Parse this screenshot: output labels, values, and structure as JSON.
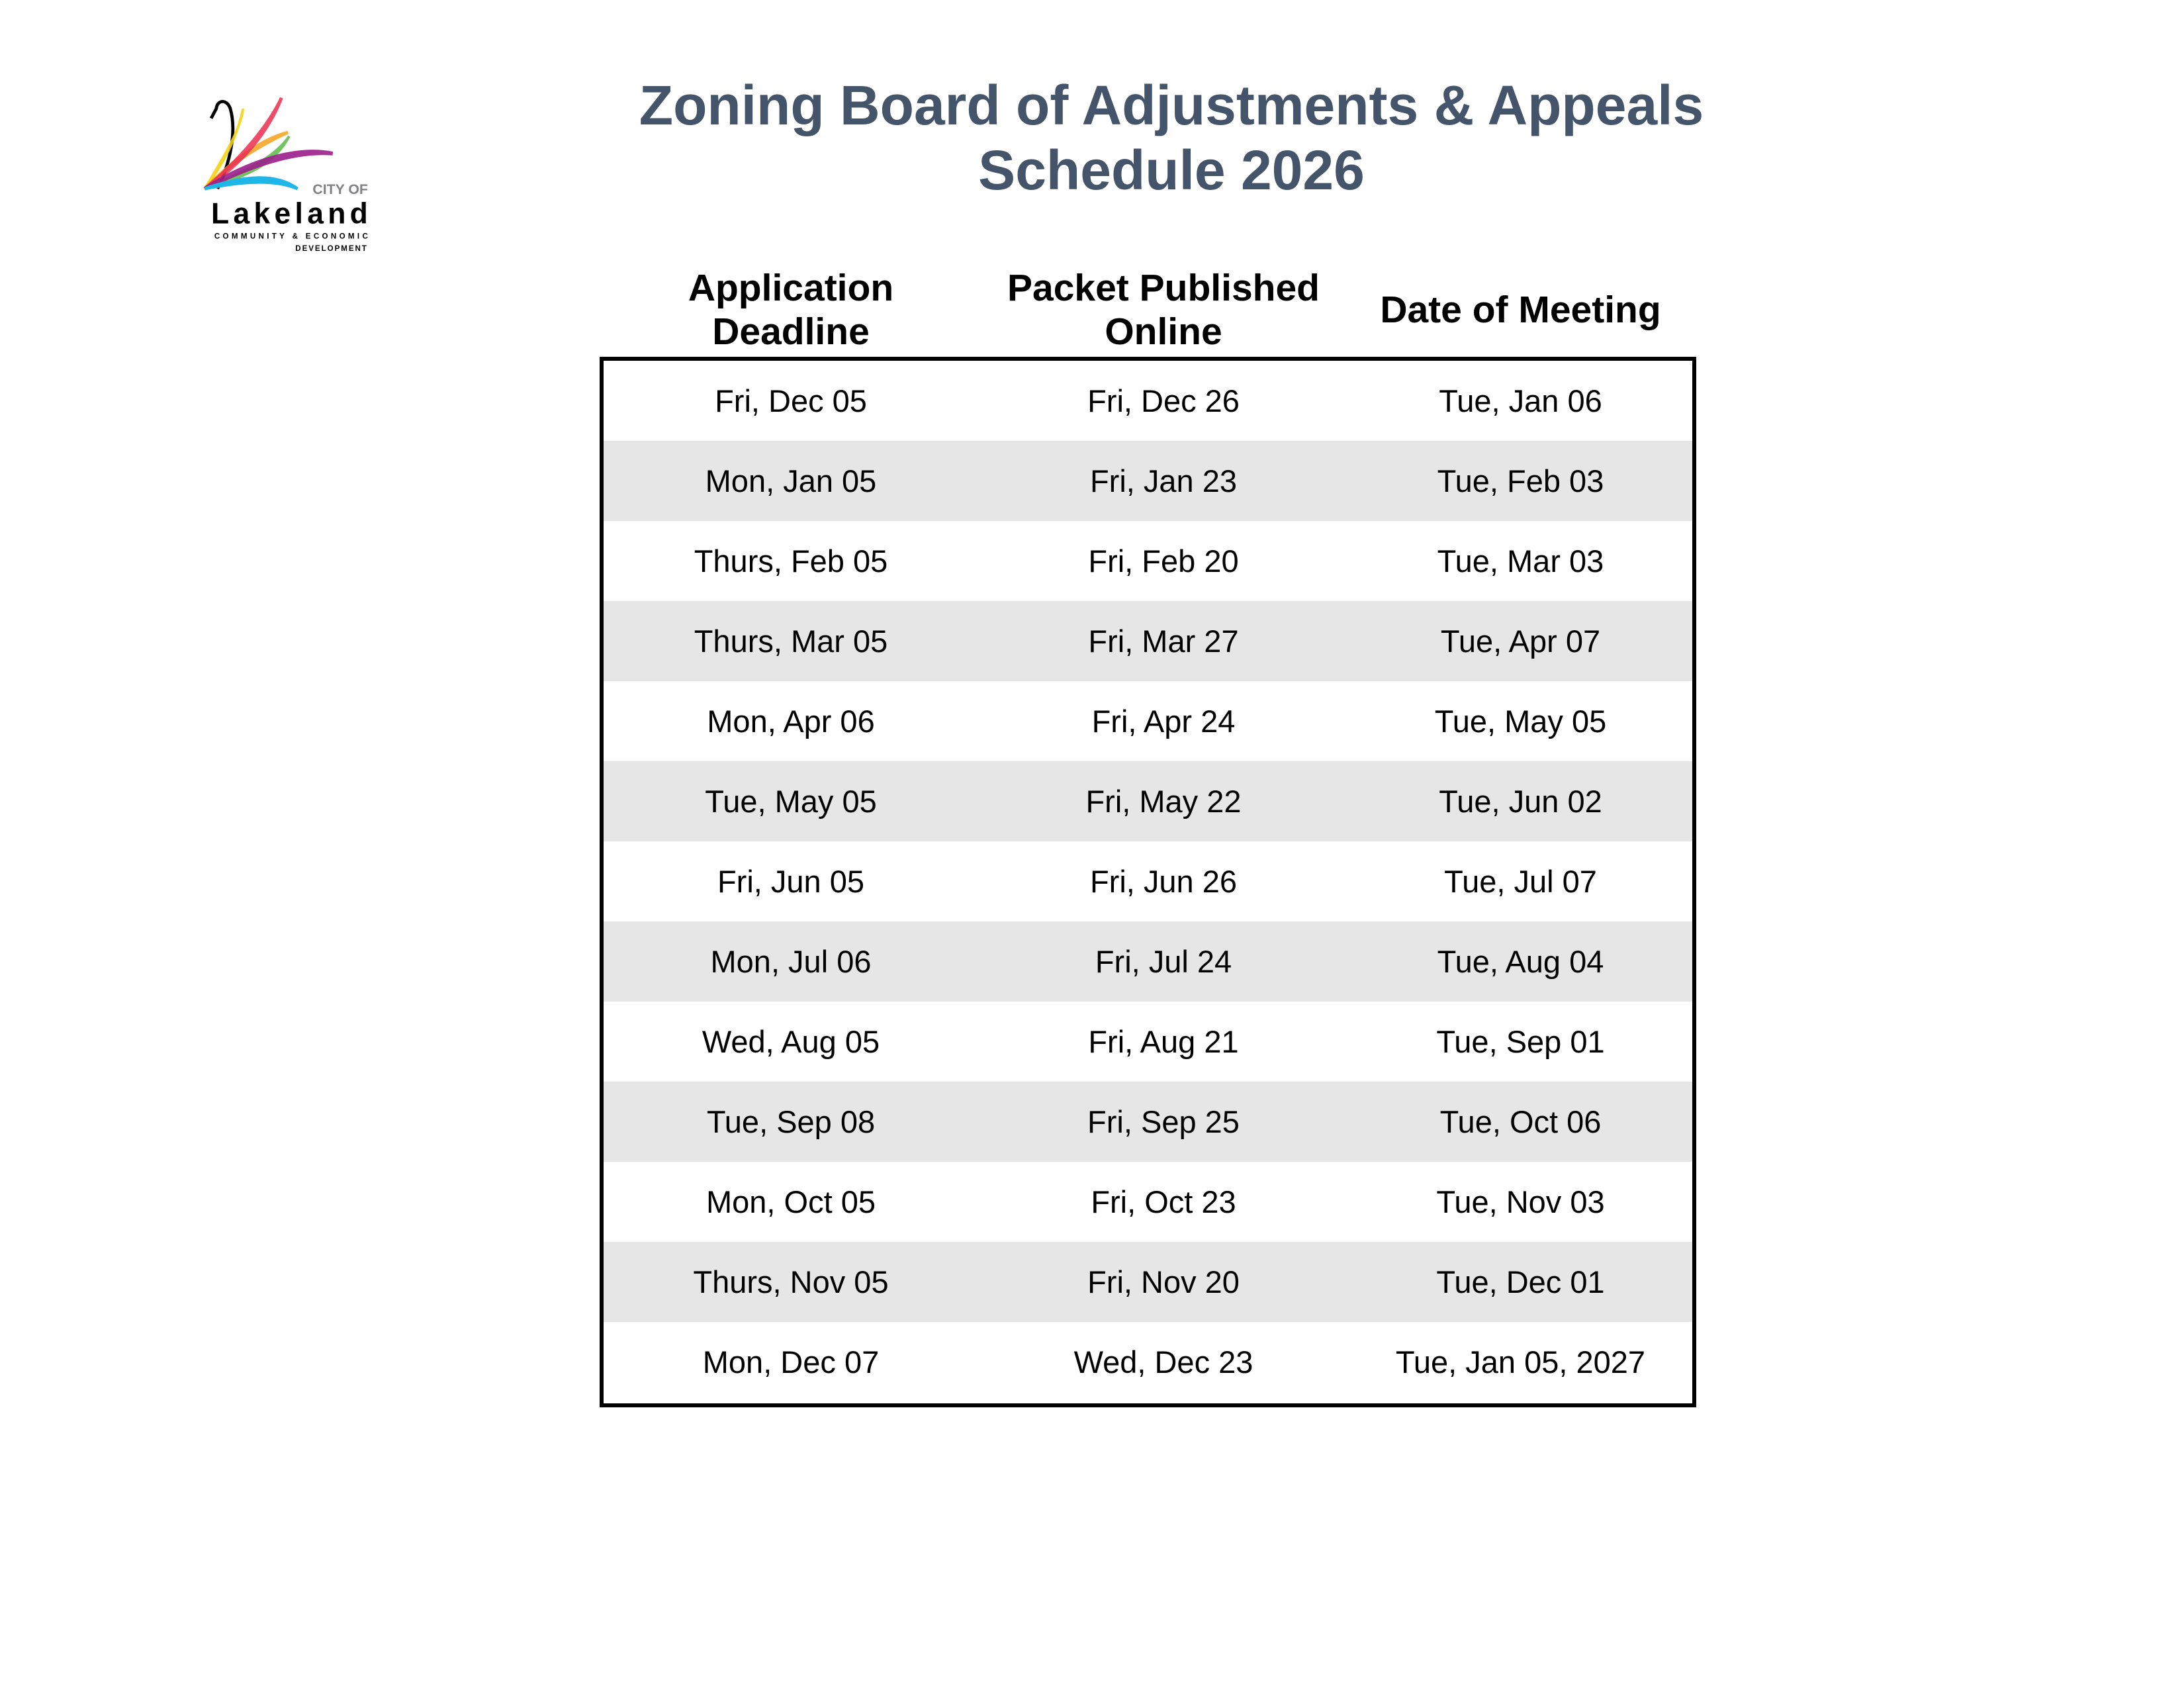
{
  "logo": {
    "line1": "CITY OF",
    "line2": "Lakeland",
    "line3": "COMMUNITY & ECONOMIC",
    "line4": "DEVELOPMENT"
  },
  "title": {
    "line1": "Zoning Board of Adjustments & Appeals",
    "line2": "Schedule 2026",
    "color": "#44546a"
  },
  "table": {
    "headers": [
      {
        "line1": "Application",
        "line2": "Deadline"
      },
      {
        "line1": "Packet Published",
        "line2": "Online"
      },
      {
        "line1": "Date of Meeting",
        "line2": ""
      }
    ],
    "rows": [
      [
        "Fri, Dec 05",
        "Fri, Dec 26",
        "Tue, Jan 06"
      ],
      [
        "Mon, Jan 05",
        "Fri, Jan 23",
        "Tue, Feb 03"
      ],
      [
        "Thurs, Feb 05",
        "Fri, Feb 20",
        "Tue, Mar 03"
      ],
      [
        "Thurs, Mar 05",
        "Fri, Mar 27",
        "Tue, Apr 07"
      ],
      [
        "Mon, Apr 06",
        "Fri, Apr 24",
        "Tue, May 05"
      ],
      [
        "Tue, May 05",
        "Fri, May 22",
        "Tue, Jun 02"
      ],
      [
        "Fri, Jun 05",
        "Fri, Jun 26",
        "Tue, Jul 07"
      ],
      [
        "Mon, Jul 06",
        "Fri, Jul 24",
        "Tue, Aug 04"
      ],
      [
        "Wed, Aug 05",
        "Fri, Aug 21",
        "Tue, Sep 01"
      ],
      [
        "Tue, Sep 08",
        "Fri, Sep 25",
        "Tue, Oct 06"
      ],
      [
        "Mon, Oct 05",
        "Fri, Oct 23",
        "Tue, Nov 03"
      ],
      [
        "Thurs, Nov 05",
        "Fri, Nov 20",
        "Tue, Dec 01"
      ],
      [
        "Mon, Dec 07",
        "Wed, Dec 23",
        "Tue, Jan 05, 2027"
      ]
    ],
    "alt_row_color": "#e6e6e6"
  }
}
